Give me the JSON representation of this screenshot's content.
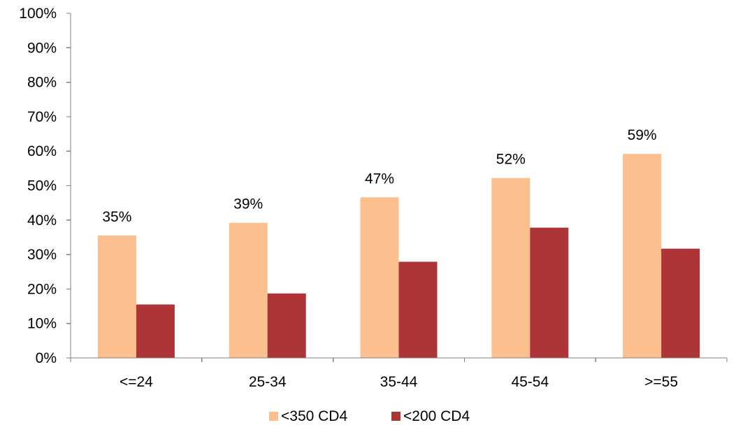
{
  "chart_data": {
    "type": "bar",
    "categories": [
      "<=24",
      "25-34",
      "35-44",
      "45-54",
      ">=55"
    ],
    "series": [
      {
        "name": "<350 CD4",
        "values": [
          35.5,
          39.2,
          46.6,
          52.2,
          59.2
        ],
        "labels": [
          "35%",
          "39%",
          "47%",
          "52%",
          "59%"
        ],
        "color": "#FCC08F"
      },
      {
        "name": "<200 CD4",
        "values": [
          15.5,
          18.7,
          27.9,
          37.8,
          31.7
        ],
        "labels": [
          "",
          "",
          "",
          "",
          ""
        ],
        "color": "#AD3437"
      }
    ],
    "y_ticks": [
      "0%",
      "10%",
      "20%",
      "30%",
      "40%",
      "50%",
      "60%",
      "70%",
      "80%",
      "90%",
      "100%"
    ],
    "ylim": [
      0,
      100
    ],
    "grid": false,
    "legend": "bottom"
  }
}
